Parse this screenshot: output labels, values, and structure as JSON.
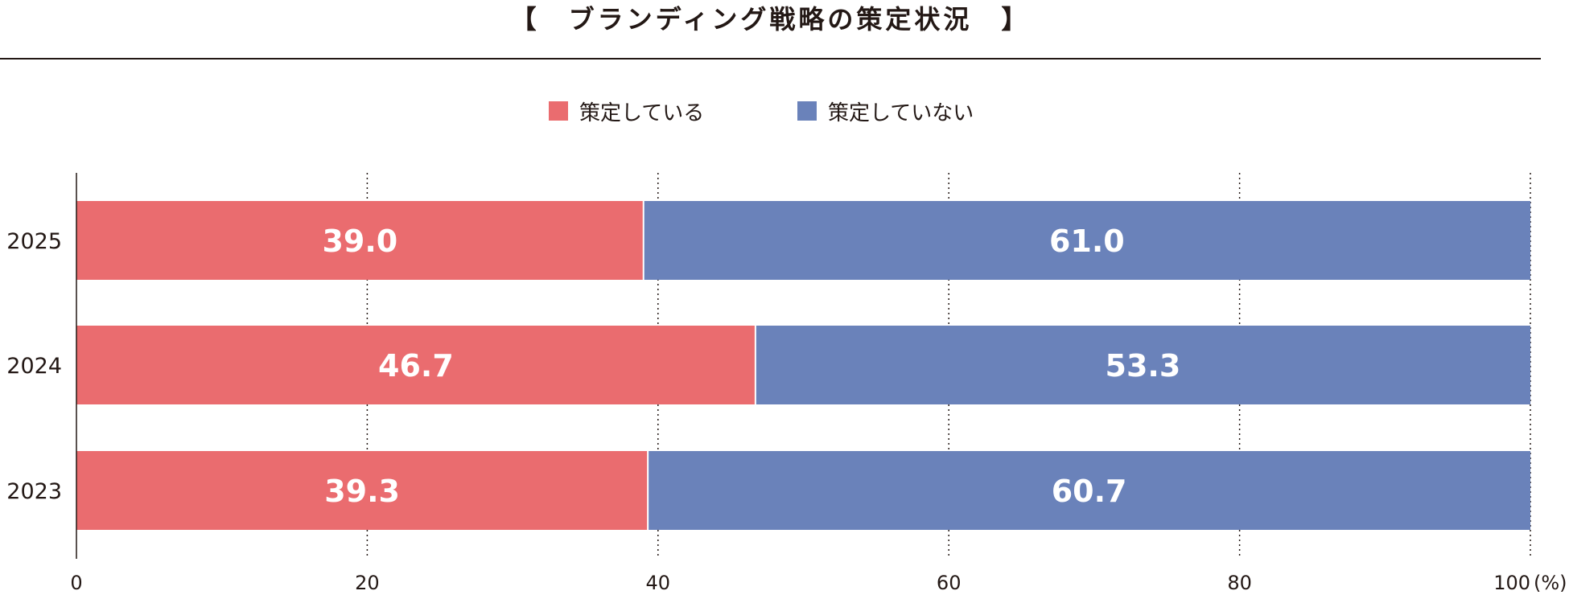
{
  "chart_data": {
    "type": "bar",
    "orientation": "horizontal",
    "stacked": true,
    "title": "【　ブランディング戦略の策定状況　】",
    "categories": [
      "2025",
      "2024",
      "2023"
    ],
    "series": [
      {
        "name": "策定している",
        "values": [
          39.0,
          46.7,
          39.3
        ],
        "color": "#EA6C6F"
      },
      {
        "name": "策定していない",
        "values": [
          61.0,
          53.3,
          60.7
        ],
        "color": "#6A82BA"
      }
    ],
    "xlim": [
      0,
      100
    ],
    "xticks": [
      "0",
      "20",
      "40",
      "60",
      "80",
      "100"
    ],
    "x_unit": "(%)",
    "grid": "vertical dotted",
    "legend": "top-center",
    "value_labels": true
  }
}
